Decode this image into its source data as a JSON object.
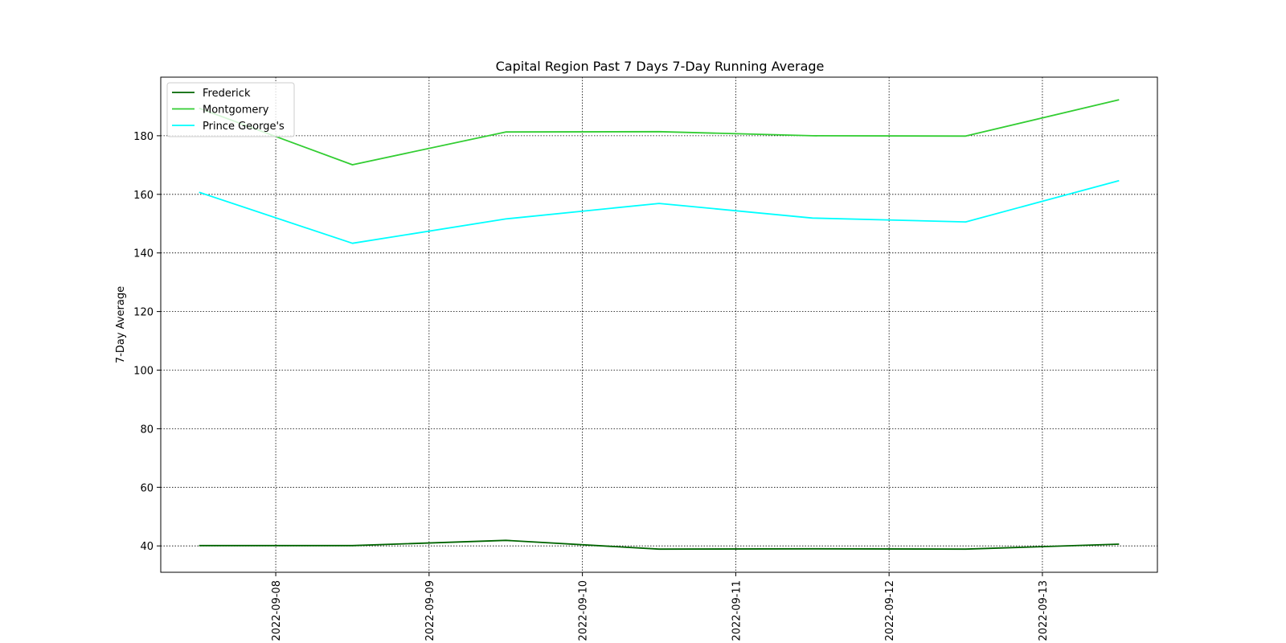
{
  "chart_data": {
    "type": "line",
    "title": "Capital Region Past 7 Days 7-Day Running Average",
    "xlabel": "",
    "ylabel": "7-Day Average",
    "x": [
      "2022-09-07 12:00",
      "2022-09-08 12:00",
      "2022-09-09 12:00",
      "2022-09-10 12:00",
      "2022-09-11 12:00",
      "2022-09-12 12:00",
      "2022-09-13 12:00"
    ],
    "xticks": [
      "2022-09-08",
      "2022-09-09",
      "2022-09-10",
      "2022-09-11",
      "2022-09-12",
      "2022-09-13"
    ],
    "xlim": [
      "2022-09-07 06:00",
      "2022-09-13 18:00"
    ],
    "yticks": [
      40,
      60,
      80,
      100,
      120,
      140,
      160,
      180
    ],
    "ylim": [
      31,
      200
    ],
    "grid": true,
    "legend_position": "top-left",
    "series": [
      {
        "name": "Frederick",
        "color": "#006400",
        "values": [
          40.1,
          40.1,
          41.9,
          38.9,
          39.0,
          38.9,
          40.6
        ]
      },
      {
        "name": "Montgomery",
        "color": "#32cd32",
        "values": [
          189.4,
          170.1,
          181.3,
          181.4,
          180.0,
          179.9,
          192.3
        ]
      },
      {
        "name": "Prince George's",
        "color": "#00ffff",
        "values": [
          160.7,
          143.3,
          151.6,
          156.9,
          151.9,
          150.6,
          164.7
        ]
      }
    ]
  }
}
